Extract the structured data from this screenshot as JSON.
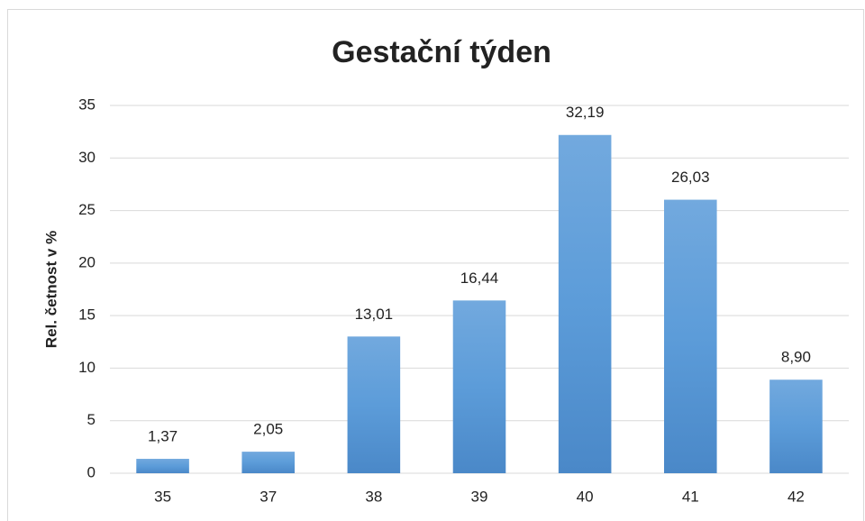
{
  "chart_data": {
    "type": "bar",
    "title": "Gestační týden",
    "y_label": "Rel. četnost v %",
    "categories": [
      "35",
      "37",
      "38",
      "39",
      "40",
      "41",
      "42"
    ],
    "values": [
      1.37,
      2.05,
      13.01,
      16.44,
      32.19,
      26.03,
      8.9
    ],
    "value_labels": [
      "1,37",
      "2,05",
      "13,01",
      "16,44",
      "32,19",
      "26,03",
      "8,90"
    ],
    "color": "#5b9bd5",
    "ylim": [
      0,
      35
    ],
    "yticks": [
      0,
      5,
      10,
      15,
      20,
      25,
      30,
      35
    ],
    "grid": true
  }
}
